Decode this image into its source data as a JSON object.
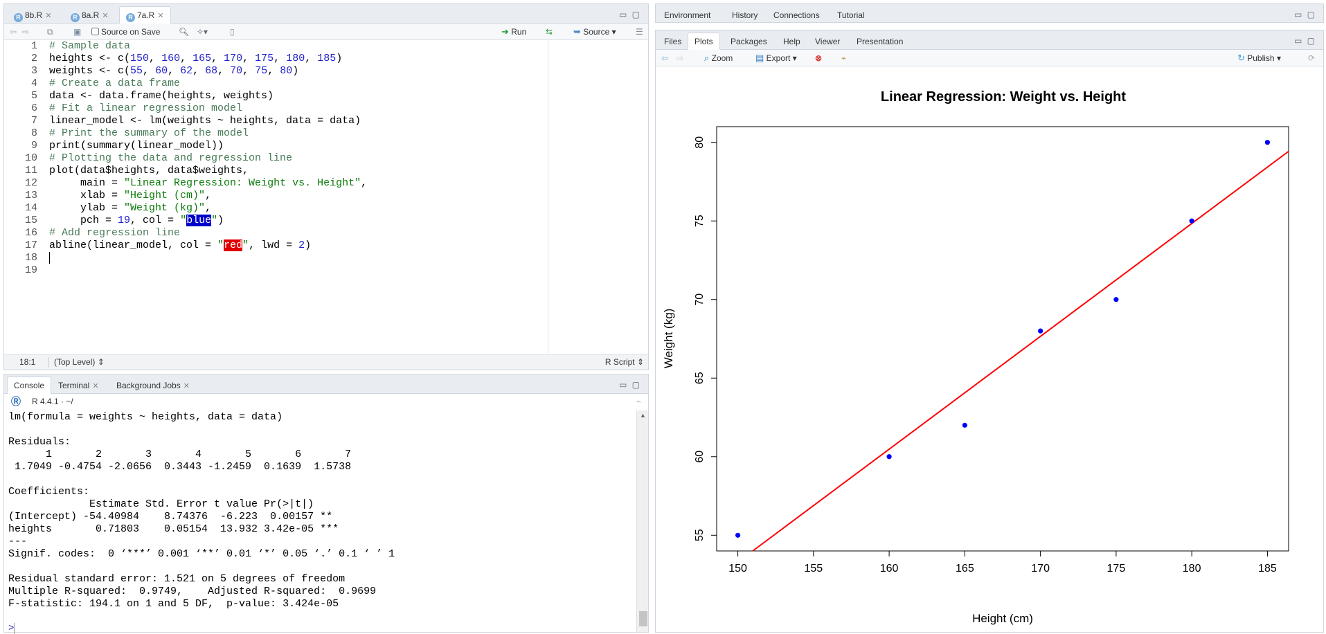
{
  "editor": {
    "tabs": [
      {
        "label": "8b.R"
      },
      {
        "label": "8a.R"
      },
      {
        "label": "7a.R"
      }
    ],
    "toolbar": {
      "source_on_save": "Source on Save",
      "run": "Run",
      "source": "Source"
    },
    "line_numbers": [
      "1",
      "2",
      "3",
      "4",
      "5",
      "6",
      "7",
      "8",
      "9",
      "10",
      "11",
      "12",
      "13",
      "14",
      "15",
      "16",
      "17",
      "18",
      "19"
    ],
    "status": {
      "cursor": "18:1",
      "scope": "(Top Level)",
      "file_type": "R Script"
    }
  },
  "console": {
    "tabs": [
      {
        "label": "Console"
      },
      {
        "label": "Terminal"
      },
      {
        "label": "Background Jobs"
      }
    ],
    "r_version": "R 4.4.1 · ~/",
    "output": "lm(formula = weights ~ heights, data = data)\n\nResiduals:\n      1       2       3       4       5       6       7 \n 1.7049 -0.4754 -2.0656  0.3443 -1.2459  0.1639  1.5738 \n\nCoefficients:\n             Estimate Std. Error t value Pr(>|t|)    \n(Intercept) -54.40984    8.74376  -6.223  0.00157 ** \nheights       0.71803    0.05154  13.932 3.42e-05 ***\n---\nSignif. codes:  0 ‘***’ 0.001 ‘**’ 0.01 ‘*’ 0.05 ‘.’ 0.1 ‘ ’ 1\n\nResidual standard error: 1.521 on 5 degrees of freedom\nMultiple R-squared:  0.9749,\tAdjusted R-squared:  0.9699 \nF-statistic: 194.1 on 1 and 5 DF,  p-value: 3.424e-05\n",
    "prompt": ">"
  },
  "env_pane": {
    "tabs": [
      {
        "label": "Environment"
      },
      {
        "label": "History"
      },
      {
        "label": "Connections"
      },
      {
        "label": "Tutorial"
      }
    ]
  },
  "files_pane": {
    "tabs": [
      {
        "label": "Files"
      },
      {
        "label": "Plots"
      },
      {
        "label": "Packages"
      },
      {
        "label": "Help"
      },
      {
        "label": "Viewer"
      },
      {
        "label": "Presentation"
      }
    ],
    "toolbar": {
      "zoom": "Zoom",
      "export": "Export",
      "publish": "Publish"
    }
  },
  "chart_data": {
    "type": "scatter",
    "title": "Linear Regression: Weight vs. Height",
    "xlabel": "Height (cm)",
    "ylabel": "Weight (kg)",
    "x": [
      150,
      160,
      165,
      170,
      175,
      180,
      185
    ],
    "y": [
      55,
      60,
      62,
      68,
      70,
      75,
      80
    ],
    "xlim": [
      148.6,
      186.4
    ],
    "ylim": [
      54.0,
      81.0
    ],
    "xticks": [
      "150",
      "155",
      "160",
      "165",
      "170",
      "175",
      "180",
      "185"
    ],
    "yticks": [
      "55",
      "60",
      "65",
      "70",
      "75",
      "80"
    ],
    "point_color": "#0000ff",
    "regression_line": {
      "intercept": -54.40984,
      "slope": 0.71803,
      "color": "#ff0000"
    }
  }
}
